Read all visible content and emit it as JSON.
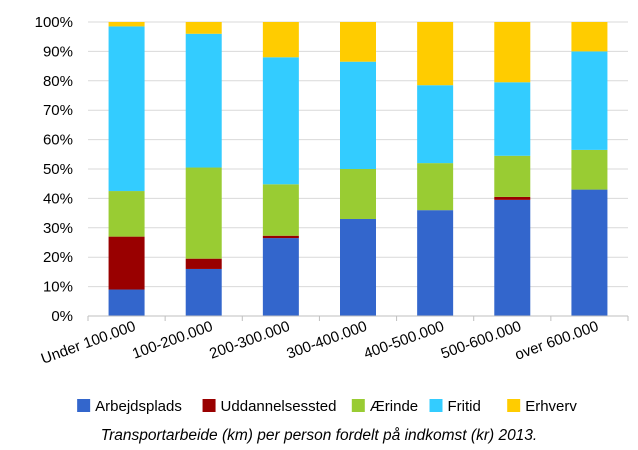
{
  "chart_data": {
    "type": "bar",
    "stacked": true,
    "title": "",
    "xlabel": "",
    "ylabel": "",
    "ylim": [
      0,
      100
    ],
    "grid": true,
    "legend_position": "bottom",
    "yticks": [
      "0%",
      "10%",
      "20%",
      "30%",
      "40%",
      "50%",
      "60%",
      "70%",
      "80%",
      "90%",
      "100%"
    ],
    "categories": [
      "Under 100.000",
      "100-200.000",
      "200-300.000",
      "300-400.000",
      "400-500.000",
      "500-600.000",
      "over 600.000"
    ],
    "series": [
      {
        "name": "Arbejdsplads",
        "color": "#3366cc",
        "values": [
          9,
          16,
          26.5,
          33,
          36,
          39.5,
          43
        ]
      },
      {
        "name": "Uddannelsessted",
        "color": "#990000",
        "values": [
          18,
          3.5,
          0.8,
          0,
          0,
          1,
          0
        ]
      },
      {
        "name": "Ærinde",
        "color": "#99cc33",
        "values": [
          15.5,
          31,
          17.5,
          17,
          16,
          14,
          13.5
        ]
      },
      {
        "name": "Fritid",
        "color": "#33ccff",
        "values": [
          56,
          45.5,
          43.2,
          36.5,
          26.5,
          25,
          33.5
        ]
      },
      {
        "name": "Erhverv",
        "color": "#ffcc00",
        "values": [
          1.5,
          4,
          12,
          13.5,
          21.5,
          20.5,
          10
        ]
      }
    ],
    "caption": "Transportarbeide (km) per person fordelt på indkomst (kr) 2013."
  }
}
